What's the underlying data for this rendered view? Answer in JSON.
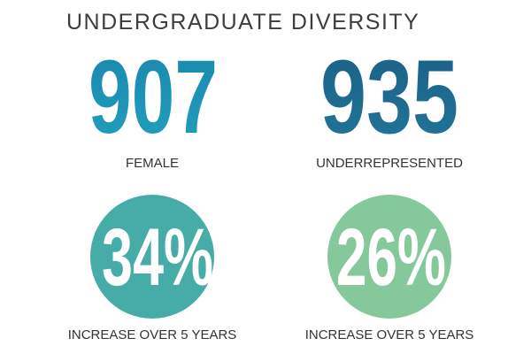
{
  "header": {
    "title": "UNDERGRADUATE DIVERSITY"
  },
  "stats": [
    {
      "value": "907",
      "label": "FEMALE"
    },
    {
      "value": "935",
      "label": "UNDERREPRESENTED"
    }
  ],
  "circles": [
    {
      "value": "34%",
      "label": "INCREASE OVER 5 YEARS"
    },
    {
      "value": "26%",
      "label": "INCREASE OVER 5 YEARS"
    }
  ]
}
